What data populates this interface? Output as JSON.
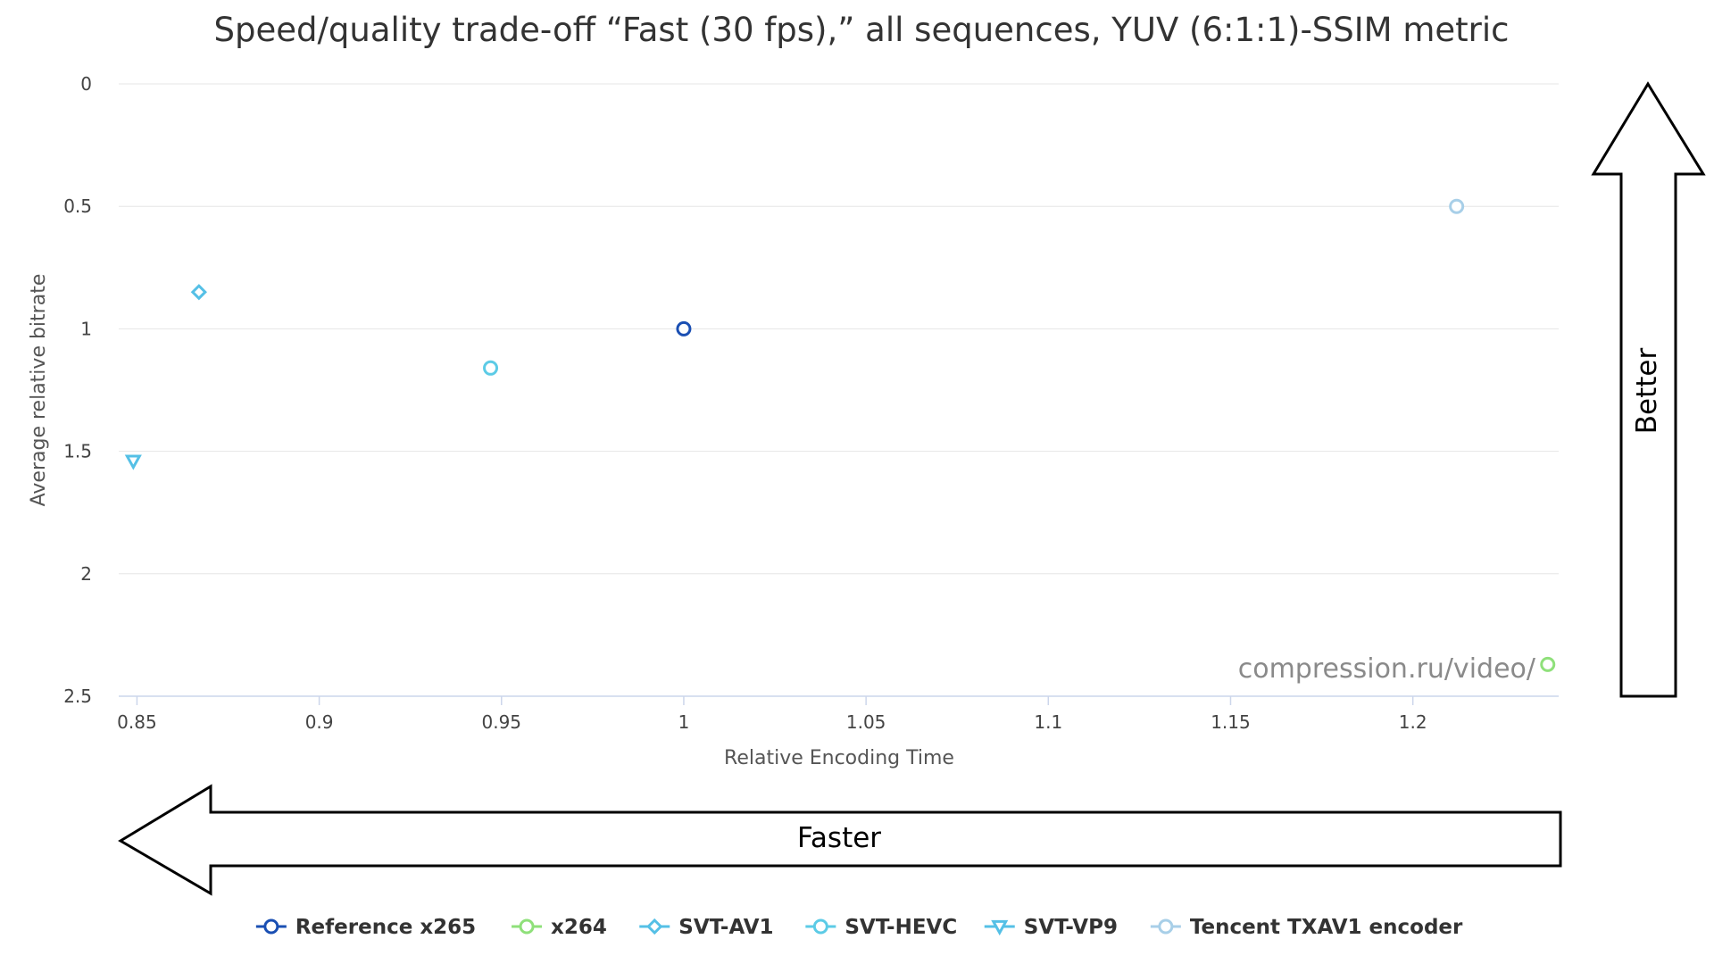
{
  "chart_data": {
    "type": "scatter",
    "title": "Speed/quality trade-off “Fast (30 fps),” all sequences, YUV (6:1:1)-SSIM metric",
    "xlabel": "Relative Encoding Time",
    "ylabel": "Average relative bitrate",
    "xlim": [
      0.845,
      1.24
    ],
    "ylim": [
      0,
      2.5
    ],
    "y_inverted": true,
    "x_ticks": [
      "0.85",
      "0.9",
      "0.95",
      "1",
      "1.05",
      "1.1",
      "1.15",
      "1.2"
    ],
    "y_ticks": [
      "0",
      "0.5",
      "1",
      "1.5",
      "2",
      "2.5"
    ],
    "grid": "horizontal",
    "legend_position": "bottom",
    "series": [
      {
        "name": "Reference x265",
        "marker": "circle",
        "color": "#1a4fb3",
        "points": [
          {
            "x": 1.0,
            "y": 1.0
          }
        ]
      },
      {
        "name": "x264",
        "marker": "circle",
        "color": "#8fe07a",
        "points": [
          {
            "x": 1.237,
            "y": 2.37
          }
        ]
      },
      {
        "name": "SVT-AV1",
        "marker": "diamond",
        "color": "#55c0e6",
        "points": [
          {
            "x": 0.867,
            "y": 0.85
          }
        ]
      },
      {
        "name": "SVT-HEVC",
        "marker": "circle",
        "color": "#5ccbe6",
        "points": [
          {
            "x": 0.947,
            "y": 1.16
          }
        ]
      },
      {
        "name": "SVT-VP9",
        "marker": "triangle-down",
        "color": "#55c0e6",
        "points": [
          {
            "x": 0.849,
            "y": 1.54
          }
        ]
      },
      {
        "name": "Tencent TXAV1 encoder",
        "marker": "circle",
        "color": "#a8cfe8",
        "points": [
          {
            "x": 1.212,
            "y": 0.5
          }
        ]
      }
    ]
  },
  "annotations": {
    "watermark": "compression.ru/video/",
    "faster_label": "Faster",
    "better_label": "Better"
  }
}
